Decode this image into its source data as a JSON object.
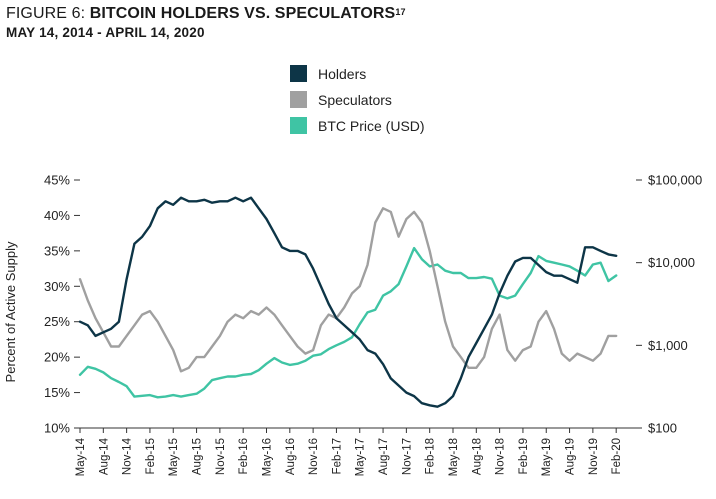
{
  "figure": {
    "label": "FIGURE 6: ",
    "title": "BITCOIN HOLDERS VS. SPECULATORS",
    "footnote": "17",
    "subtitle": "MAY 14, 2014 -  APRIL 14, 2020"
  },
  "chart_data": {
    "type": "line",
    "x_tick_labels": [
      "May-14",
      "Aug-14",
      "Nov-14",
      "Feb-15",
      "May-15",
      "Aug-15",
      "Nov-15",
      "Feb-16",
      "May-16",
      "Aug-16",
      "Nov-16",
      "Feb-17",
      "May-17",
      "Aug-17",
      "Nov-17",
      "Feb-18",
      "May-18",
      "Aug-18",
      "Nov-18",
      "Feb-19",
      "May-19",
      "Aug-19",
      "Nov-19",
      "Feb-20"
    ],
    "ylabel_left": "Percent of Active Supply",
    "y_left_ticks": [
      "45%",
      "40%",
      "35%",
      "30%",
      "25%",
      "20%",
      "15%",
      "10%"
    ],
    "y_left_range": [
      10,
      45
    ],
    "y_right_ticks": [
      "$100,000",
      "$10,000",
      "$1,000",
      "$100"
    ],
    "y_right_range": [
      100,
      100000
    ],
    "y_right_scale": "log",
    "grid": false,
    "legend_position": "top-center",
    "colors": {
      "holders": "#0d3547",
      "speculators": "#a0a0a0",
      "price": "#3fc4a4"
    },
    "series": [
      {
        "name": "Holders",
        "axis": "left",
        "points": [
          [
            0,
            25
          ],
          [
            1,
            24.5
          ],
          [
            2,
            23
          ],
          [
            3,
            23.5
          ],
          [
            4,
            24
          ],
          [
            5,
            25
          ],
          [
            6,
            31
          ],
          [
            7,
            36
          ],
          [
            8,
            37
          ],
          [
            9,
            38.5
          ],
          [
            10,
            41
          ],
          [
            11,
            42
          ],
          [
            12,
            41.5
          ],
          [
            13,
            42.5
          ],
          [
            14,
            42
          ],
          [
            15,
            42
          ],
          [
            16,
            42.2
          ],
          [
            17,
            41.8
          ],
          [
            18,
            42
          ],
          [
            19,
            42
          ],
          [
            20,
            42.5
          ],
          [
            21,
            42
          ],
          [
            22,
            42.5
          ],
          [
            23,
            41
          ],
          [
            24,
            39.5
          ],
          [
            25,
            37.5
          ],
          [
            26,
            35.5
          ],
          [
            27,
            35
          ],
          [
            28,
            35
          ],
          [
            29,
            34.5
          ],
          [
            30,
            32.5
          ],
          [
            31,
            30
          ],
          [
            32,
            27.5
          ],
          [
            33,
            25.5
          ],
          [
            34,
            24.5
          ],
          [
            35,
            23.5
          ],
          [
            36,
            22.5
          ],
          [
            37,
            21
          ],
          [
            38,
            20.5
          ],
          [
            39,
            19
          ],
          [
            40,
            17
          ],
          [
            41,
            16
          ],
          [
            42,
            15
          ],
          [
            43,
            14.5
          ],
          [
            44,
            13.5
          ],
          [
            45,
            13.2
          ],
          [
            46,
            13
          ],
          [
            47,
            13.5
          ],
          [
            48,
            14.5
          ],
          [
            49,
            17
          ],
          [
            50,
            20
          ],
          [
            51,
            22
          ],
          [
            52,
            24
          ],
          [
            53,
            26
          ],
          [
            54,
            29
          ],
          [
            55,
            31.5
          ],
          [
            56,
            33.5
          ],
          [
            57,
            34
          ],
          [
            58,
            34
          ],
          [
            59,
            33
          ],
          [
            60,
            32
          ],
          [
            61,
            31.5
          ],
          [
            62,
            31.5
          ],
          [
            63,
            31
          ],
          [
            64,
            30.5
          ],
          [
            65,
            35.5
          ],
          [
            66,
            35.5
          ],
          [
            67,
            35
          ],
          [
            68,
            34.5
          ],
          [
            69,
            34.3
          ]
        ]
      },
      {
        "name": "Speculators",
        "axis": "left",
        "points": [
          [
            0,
            31
          ],
          [
            1,
            28
          ],
          [
            2,
            25.5
          ],
          [
            3,
            23.5
          ],
          [
            4,
            21.5
          ],
          [
            5,
            21.5
          ],
          [
            6,
            23
          ],
          [
            7,
            24.5
          ],
          [
            8,
            26
          ],
          [
            9,
            26.5
          ],
          [
            10,
            25
          ],
          [
            11,
            23
          ],
          [
            12,
            21
          ],
          [
            13,
            18
          ],
          [
            14,
            18.5
          ],
          [
            15,
            20
          ],
          [
            16,
            20
          ],
          [
            17,
            21.5
          ],
          [
            18,
            23
          ],
          [
            19,
            25
          ],
          [
            20,
            26
          ],
          [
            21,
            25.5
          ],
          [
            22,
            26.5
          ],
          [
            23,
            26
          ],
          [
            24,
            27
          ],
          [
            25,
            26
          ],
          [
            26,
            24.5
          ],
          [
            27,
            23
          ],
          [
            28,
            21.5
          ],
          [
            29,
            20.5
          ],
          [
            30,
            21
          ],
          [
            31,
            24.5
          ],
          [
            32,
            26
          ],
          [
            33,
            25.5
          ],
          [
            34,
            27
          ],
          [
            35,
            29
          ],
          [
            36,
            30
          ],
          [
            37,
            33
          ],
          [
            38,
            39
          ],
          [
            39,
            41
          ],
          [
            40,
            40.5
          ],
          [
            41,
            37
          ],
          [
            42,
            39.5
          ],
          [
            43,
            40.5
          ],
          [
            44,
            39
          ],
          [
            45,
            35
          ],
          [
            46,
            30
          ],
          [
            47,
            25
          ],
          [
            48,
            21.5
          ],
          [
            49,
            20
          ],
          [
            50,
            18.5
          ],
          [
            51,
            18.5
          ],
          [
            52,
            20
          ],
          [
            53,
            24
          ],
          [
            54,
            26
          ],
          [
            55,
            21
          ],
          [
            56,
            19.5
          ],
          [
            57,
            21
          ],
          [
            58,
            21.5
          ],
          [
            59,
            25
          ],
          [
            60,
            26.5
          ],
          [
            61,
            24
          ],
          [
            62,
            20.5
          ],
          [
            63,
            19.5
          ],
          [
            64,
            20.5
          ],
          [
            65,
            20
          ],
          [
            66,
            19.5
          ],
          [
            67,
            20.5
          ],
          [
            68,
            23
          ],
          [
            69,
            23
          ]
        ]
      },
      {
        "name": "BTC Price (USD)",
        "axis": "right",
        "points": [
          [
            0,
            440
          ],
          [
            1,
            550
          ],
          [
            2,
            520
          ],
          [
            3,
            470
          ],
          [
            4,
            400
          ],
          [
            5,
            360
          ],
          [
            6,
            320
          ],
          [
            7,
            240
          ],
          [
            8,
            245
          ],
          [
            9,
            250
          ],
          [
            10,
            235
          ],
          [
            11,
            240
          ],
          [
            12,
            250
          ],
          [
            13,
            240
          ],
          [
            14,
            250
          ],
          [
            15,
            260
          ],
          [
            16,
            300
          ],
          [
            17,
            380
          ],
          [
            18,
            400
          ],
          [
            19,
            420
          ],
          [
            20,
            420
          ],
          [
            21,
            440
          ],
          [
            22,
            450
          ],
          [
            23,
            500
          ],
          [
            24,
            600
          ],
          [
            25,
            700
          ],
          [
            26,
            620
          ],
          [
            27,
            580
          ],
          [
            28,
            600
          ],
          [
            29,
            650
          ],
          [
            30,
            750
          ],
          [
            31,
            780
          ],
          [
            32,
            900
          ],
          [
            33,
            1000
          ],
          [
            34,
            1100
          ],
          [
            35,
            1250
          ],
          [
            36,
            1800
          ],
          [
            37,
            2500
          ],
          [
            38,
            2700
          ],
          [
            39,
            4000
          ],
          [
            40,
            4500
          ],
          [
            41,
            5500
          ],
          [
            42,
            9000
          ],
          [
            43,
            15000
          ],
          [
            44,
            11000
          ],
          [
            45,
            9000
          ],
          [
            46,
            9500
          ],
          [
            47,
            8000
          ],
          [
            48,
            7500
          ],
          [
            49,
            7500
          ],
          [
            50,
            6500
          ],
          [
            51,
            6500
          ],
          [
            52,
            6700
          ],
          [
            53,
            6400
          ],
          [
            54,
            4000
          ],
          [
            55,
            3700
          ],
          [
            56,
            4000
          ],
          [
            57,
            5500
          ],
          [
            58,
            7500
          ],
          [
            59,
            12000
          ],
          [
            60,
            10500
          ],
          [
            61,
            10000
          ],
          [
            62,
            9500
          ],
          [
            63,
            9000
          ],
          [
            64,
            8000
          ],
          [
            65,
            7000
          ],
          [
            66,
            9500
          ],
          [
            67,
            10000
          ],
          [
            68,
            6000
          ],
          [
            69,
            7000
          ]
        ]
      }
    ]
  }
}
